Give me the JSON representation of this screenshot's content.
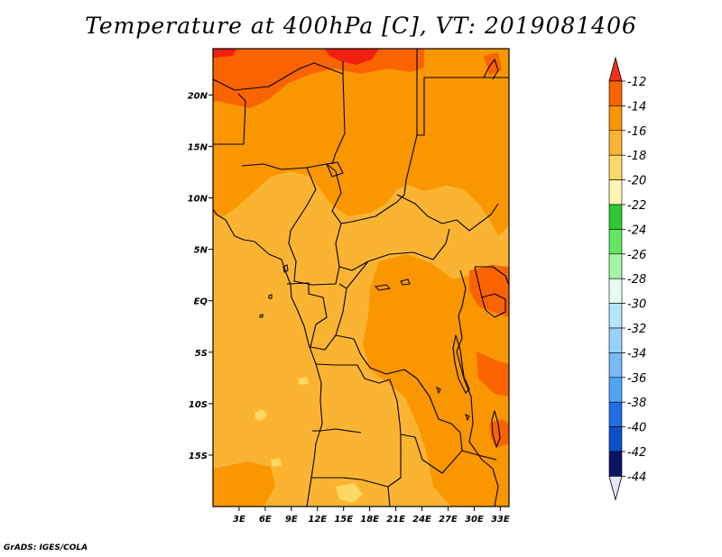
{
  "title": "Temperature at 400hPa [C], VT: 2019081406",
  "credit": "GrADS: IGES/COLA",
  "map": {
    "lon_range": [
      0,
      34
    ],
    "lat_range": [
      -20,
      24.5
    ],
    "lat_ticks": [
      {
        "value": 20,
        "label": "20N"
      },
      {
        "value": 15,
        "label": "15N"
      },
      {
        "value": 10,
        "label": "10N"
      },
      {
        "value": 5,
        "label": "5N"
      },
      {
        "value": 0,
        "label": "EQ"
      },
      {
        "value": -5,
        "label": "5S"
      },
      {
        "value": -10,
        "label": "10S"
      },
      {
        "value": -15,
        "label": "15S"
      }
    ],
    "lon_ticks": [
      {
        "value": 3,
        "label": "3E"
      },
      {
        "value": 6,
        "label": "6E"
      },
      {
        "value": 9,
        "label": "9E"
      },
      {
        "value": 12,
        "label": "12E"
      },
      {
        "value": 15,
        "label": "15E"
      },
      {
        "value": 18,
        "label": "18E"
      },
      {
        "value": 21,
        "label": "21E"
      },
      {
        "value": 24,
        "label": "24E"
      },
      {
        "value": 27,
        "label": "27E"
      },
      {
        "value": 30,
        "label": "30E"
      },
      {
        "value": 33,
        "label": "33E"
      }
    ]
  },
  "colorbar": {
    "labels": [
      "-12",
      "-14",
      "-16",
      "-18",
      "-20",
      "-22",
      "-24",
      "-26",
      "-28",
      "-30",
      "-32",
      "-34",
      "-36",
      "-38",
      "-40",
      "-42",
      "-44"
    ],
    "colors": [
      "#f02010",
      "#fa6400",
      "#fa9600",
      "#fbb432",
      "#fdd864",
      "#fff5b4",
      "#2ec832",
      "#64e664",
      "#a6f5a6",
      "#e6fff0",
      "#b4e6fa",
      "#96d2fa",
      "#78b9fa",
      "#50a5f5",
      "#1e6ee6",
      "#0a50c8",
      "#0a1464"
    ]
  },
  "fields": {
    "base_color": "#fbb432",
    "warm_color": "#fa9600",
    "hot_color": "#fa6400",
    "peak_color": "#f02010",
    "cool_color": "#fdd864",
    "border_color": "#000000"
  }
}
